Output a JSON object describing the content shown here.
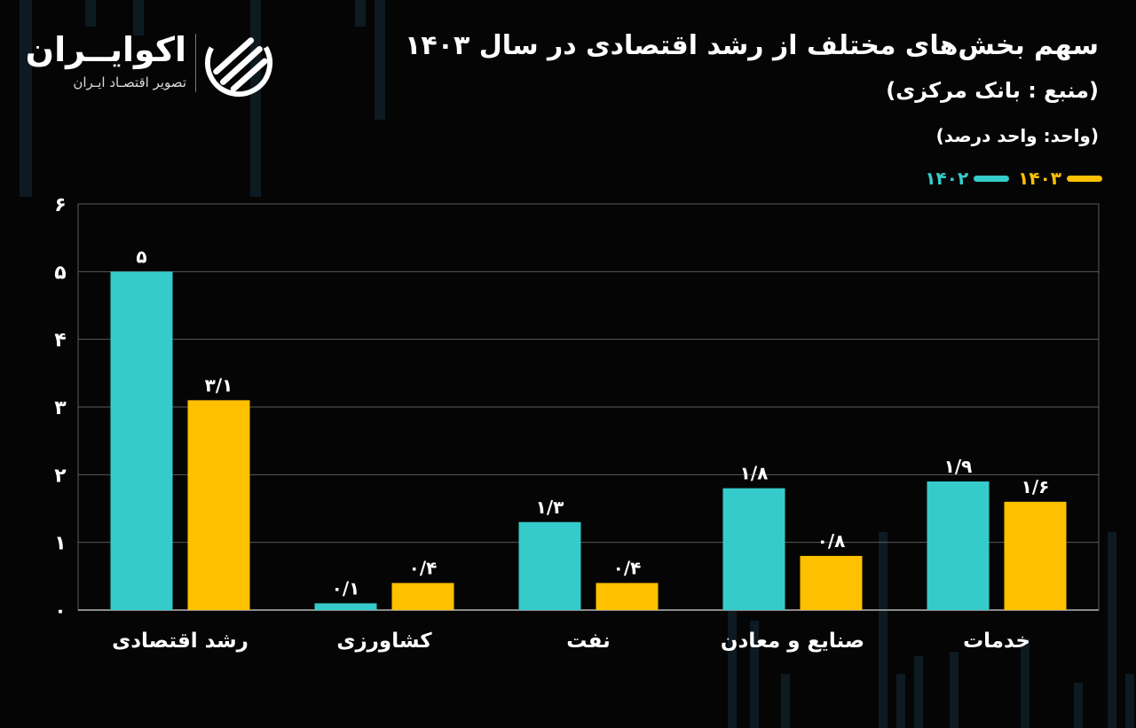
{
  "brand": {
    "name": "اکوایــران",
    "tagline": "تصویر اقتصـاد ایـران"
  },
  "header": {
    "title": "سهم بخش‌های مختلف از رشد اقتصادی در سال ۱۴۰۳",
    "source": "(منبع : بانک مرکزی)",
    "unit": "(واحد: واحد درصد)"
  },
  "colors": {
    "background": "#050505",
    "series_1402": "#36CBCB",
    "series_1403": "#FFC000",
    "grid": "#5a5a5a"
  },
  "chart_data": {
    "type": "bar",
    "categories": [
      "رشد اقتصادی",
      "کشاورزی",
      "نفت",
      "صنایع و معادن",
      "خدمات"
    ],
    "series": [
      {
        "name": "۱۴۰۲",
        "values": [
          5,
          0.1,
          1.3,
          1.8,
          1.9
        ],
        "labels": [
          "۵",
          "۰/۱",
          "۱/۳",
          "۱/۸",
          "۱/۹"
        ],
        "color": "#36CBCB"
      },
      {
        "name": "۱۴۰۳",
        "values": [
          3.1,
          0.4,
          0.4,
          0.8,
          1.6
        ],
        "labels": [
          "۳/۱",
          "۰/۴",
          "۰/۴",
          "۰/۸",
          "۱/۶"
        ],
        "color": "#FFC000"
      }
    ],
    "yticks": [
      0,
      1,
      2,
      3,
      4,
      5,
      6
    ],
    "ytick_labels": [
      "۰",
      "۱",
      "۲",
      "۳",
      "۴",
      "۵",
      "۶"
    ],
    "ylim": [
      0,
      6
    ],
    "grid": true,
    "legend_position": "top-right"
  }
}
